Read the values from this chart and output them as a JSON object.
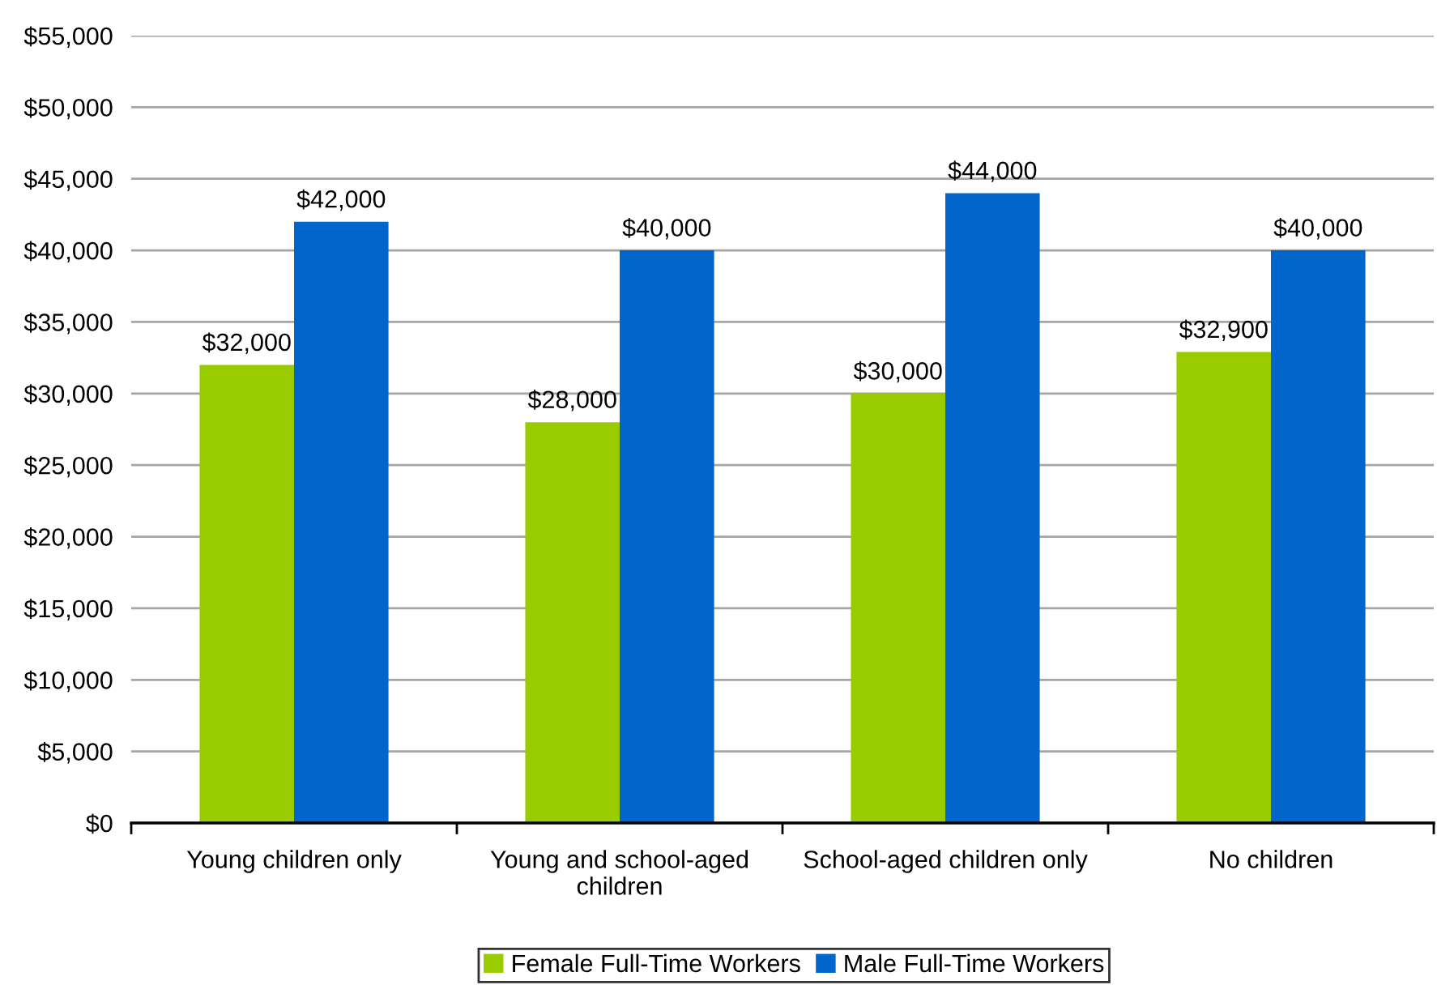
{
  "chart_data": {
    "type": "bar",
    "categories": [
      "Young children only",
      "Young and school-aged children",
      "School-aged children only",
      "No children"
    ],
    "series": [
      {
        "name": "Female Full-Time Workers",
        "color": "#99cc00",
        "values": [
          32000,
          28000,
          30000,
          32900
        ],
        "value_labels": [
          "$32,000",
          "$28,000",
          "$30,000",
          "$32,900"
        ]
      },
      {
        "name": "Male Full-Time Workers",
        "color": "#0066cc",
        "values": [
          42000,
          40000,
          44000,
          40000
        ],
        "value_labels": [
          "$42,000",
          "$40,000",
          "$44,000",
          "$40,000"
        ]
      }
    ],
    "ylim": [
      0,
      55000
    ],
    "yticks": [
      {
        "value": 0,
        "label": "$0"
      },
      {
        "value": 5000,
        "label": "$5,000"
      },
      {
        "value": 10000,
        "label": "$10,000"
      },
      {
        "value": 15000,
        "label": "$15,000"
      },
      {
        "value": 20000,
        "label": "$20,000"
      },
      {
        "value": 25000,
        "label": "$25,000"
      },
      {
        "value": 30000,
        "label": "$30,000"
      },
      {
        "value": 35000,
        "label": "$35,000"
      },
      {
        "value": 40000,
        "label": "$40,000"
      },
      {
        "value": 45000,
        "label": "$45,000"
      },
      {
        "value": 50000,
        "label": "$50,000"
      },
      {
        "value": 55000,
        "label": "$55,000"
      }
    ],
    "grid": "y",
    "legend": "bottom"
  }
}
